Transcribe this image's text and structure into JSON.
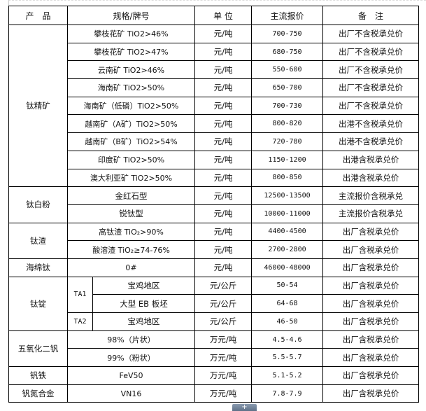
{
  "headers": [
    "产　品",
    "规格/牌号",
    "单 位",
    "主流报价",
    "备　注"
  ],
  "groups": {
    "titanium_concentrate": {
      "product": "钛精矿",
      "rows": [
        {
          "spec": "攀枝花矿 TiO2>46%",
          "unit": "元/吨",
          "price": "700-750",
          "note": "出厂不含税承兑价"
        },
        {
          "spec": "攀枝花矿 TiO2>47%",
          "unit": "元/吨",
          "price": "680-750",
          "note": "出厂不含税承兑价"
        },
        {
          "spec": "云南矿 TiO2>46%",
          "unit": "元/吨",
          "price": "550-600",
          "note": "出厂不含税承兑价"
        },
        {
          "spec": "海南矿 TiO2>50%",
          "unit": "元/吨",
          "price": "650-700",
          "note": "出厂不含税承兑价"
        },
        {
          "spec": "海南矿（低磷）TiO2>50%",
          "unit": "元/吨",
          "price": "700-730",
          "note": "出厂不含税承兑价"
        },
        {
          "spec": "越南矿（A矿）TiO2>50%",
          "unit": "元/吨",
          "price": "800-820",
          "note": "出港不含税承兑价"
        },
        {
          "spec": "越南矿（B矿）TiO2>54%",
          "unit": "元/吨",
          "price": "720-780",
          "note": "出港不含税承兑价"
        },
        {
          "spec": "印度矿 TiO2>50%",
          "unit": "元/吨",
          "price": "1150-1200",
          "note": "出港含税承兑价"
        },
        {
          "spec": "澳大利亚矿 TiO2>50%",
          "unit": "元/吨",
          "price": "800-850",
          "note": "出港含税承兑价"
        }
      ]
    },
    "titanium_dioxide": {
      "product": "钛白粉",
      "rows": [
        {
          "spec": "金红石型",
          "unit": "元/吨",
          "price": "12500-13500",
          "note": "主流报价含税承兑"
        },
        {
          "spec": "锐钛型",
          "unit": "元/吨",
          "price": "10000-11000",
          "note": "主流报价含税承兑"
        }
      ]
    },
    "titanium_slag": {
      "product": "钛渣",
      "rows": [
        {
          "spec": "高钛渣 TiO₂>90%",
          "unit": "元/吨",
          "price": "4400-4500",
          "note": "出厂含税承兑价"
        },
        {
          "spec": "酸溶渣 TiO₂≥74-76%",
          "unit": "元/吨",
          "price": "2700-2800",
          "note": "出厂含税承兑价"
        }
      ]
    },
    "sponge_titanium": {
      "product": "海绵钛",
      "rows": [
        {
          "spec": "0#",
          "unit": "元/吨",
          "price": "46000-48000",
          "note": "出厂含税承兑价"
        }
      ]
    },
    "titanium_ingot": {
      "product": "钛锭",
      "rows": [
        {
          "grade": "TA1",
          "spec": "宝鸡地区",
          "unit": "元/公斤",
          "price": "50-54",
          "note": "出厂含税承兑价"
        },
        {
          "spec": "大型 EB 板坯",
          "unit": "元/公斤",
          "price": "64-68",
          "note": "出厂含税承兑价"
        },
        {
          "grade": "TA2",
          "spec": "宝鸡地区",
          "unit": "元/公斤",
          "price": "46-50",
          "note": "出厂含税承兑价"
        }
      ]
    },
    "vanadium_pentoxide": {
      "product": "五氧化二钒",
      "rows": [
        {
          "spec": "98%（片状）",
          "unit": "万元/吨",
          "price": "4.5-4.6",
          "note": "出厂含税承兑价"
        },
        {
          "spec": "99%（粉状）",
          "unit": "万元/吨",
          "price": "5.5-5.7",
          "note": "出厂含税承兑价"
        }
      ]
    },
    "ferrovanadium": {
      "product": "钒铁",
      "rows": [
        {
          "spec": "FeV50",
          "unit": "万元/吨",
          "price": "5.1-5.2",
          "note": "出厂含税承兑价"
        }
      ]
    },
    "vanadium_nitrogen": {
      "product": "钒氮合金",
      "rows": [
        {
          "spec": "VN16",
          "unit": "万元/吨",
          "price": "7.8-7.9",
          "note": "出厂含税承兑价"
        }
      ]
    }
  },
  "expand_button": "+"
}
